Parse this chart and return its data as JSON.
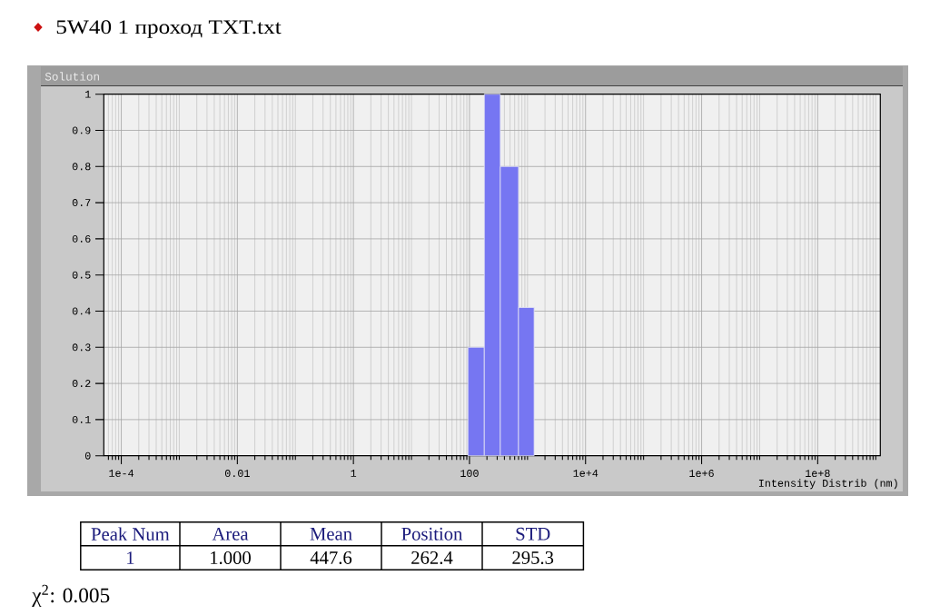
{
  "chart_data": {
    "type": "histogram",
    "title": "5W40 1 проход TXT.txt",
    "subtitle": "Solution",
    "xlabel": "Intensity Distrib (nm)",
    "bins": [
      94,
      180,
      340,
      700,
      1300
    ],
    "values": [
      0.3,
      1,
      0.8,
      0.41
    ],
    "color": "#7676f2",
    "log": "x",
    "xlim": [
      5e-05,
      1200000000.0
    ],
    "xticks": [
      {
        "value": 0.0001,
        "label": "1e-4"
      },
      0.01,
      1,
      100,
      {
        "value": 10000,
        "label": "1e+4"
      },
      {
        "value": 1000000,
        "label": "1e+6"
      },
      {
        "value": 100000000,
        "label": "1e+8"
      }
    ],
    "ylim": [
      0,
      1
    ],
    "yticks": [
      0,
      0.1,
      0.2,
      0.3,
      0.4,
      0.5,
      0.6,
      0.7,
      0.8,
      0.9,
      1
    ],
    "grid": true,
    "annotations": [
      "Peak Num",
      "Area",
      "Mean",
      "Position",
      "STD",
      "1",
      "1.000",
      "447.6",
      "262.4",
      "295.3",
      "χ$^{2}$: 0.005"
    ]
  }
}
